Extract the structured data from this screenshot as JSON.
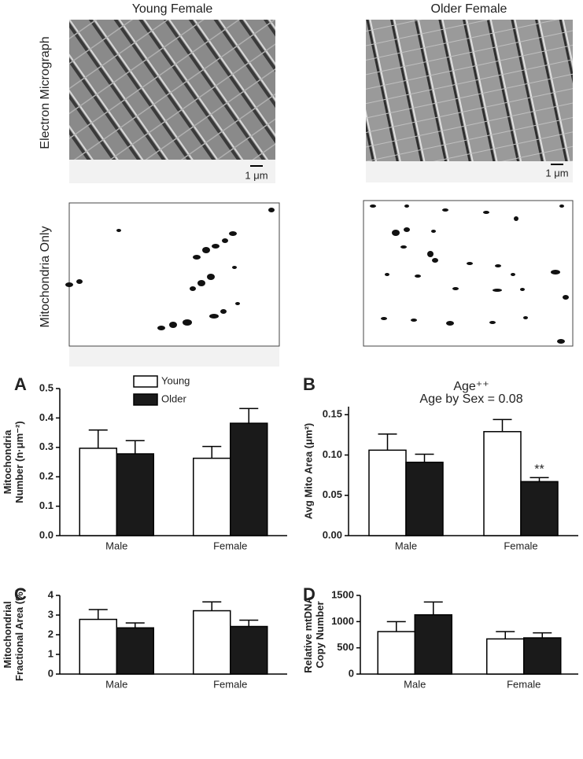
{
  "figure": {
    "columns": [
      "Young Female",
      "Older Female"
    ],
    "rows": [
      "Electron Micrograph",
      "Mitochondria Only"
    ],
    "scale_bar": "1 μm"
  },
  "chart_data": [
    {
      "type": "bar",
      "panel": "A",
      "ylabel": [
        "Mitochondria",
        "Number (n·μm⁻²)"
      ],
      "categories": [
        "Male",
        "Female"
      ],
      "series": [
        {
          "name": "Young",
          "color": "#ffffff",
          "values": [
            0.297,
            0.263
          ],
          "errors": [
            0.062,
            0.04
          ]
        },
        {
          "name": "Older",
          "color": "#1a1a1a",
          "values": [
            0.278,
            0.382
          ],
          "errors": [
            0.045,
            0.05
          ]
        }
      ],
      "ylim": [
        0,
        0.5
      ],
      "yticks": [
        {
          "value": 0,
          "label": "0.0"
        },
        0.1,
        0.2,
        0.3,
        0.4,
        0.5
      ],
      "legend": true
    },
    {
      "type": "bar",
      "panel": "B",
      "title": "Age⁺⁺",
      "subtitle": "Age by Sex = 0.08",
      "ylabel": [
        "Avg Mito Area (μm²)"
      ],
      "categories": [
        "Male",
        "Female"
      ],
      "series": [
        {
          "name": "Young",
          "color": "#ffffff",
          "values": [
            0.106,
            0.129
          ],
          "errors": [
            0.02,
            0.015
          ]
        },
        {
          "name": "Older",
          "color": "#1a1a1a",
          "values": [
            0.091,
            0.067
          ],
          "errors": [
            0.01,
            0.005
          ]
        }
      ],
      "ylim": [
        0,
        0.16
      ],
      "yticks": [
        {
          "value": 0,
          "label": "0.00"
        },
        {
          "value": 0.05,
          "label": "0.05"
        },
        {
          "value": 0.1,
          "label": "0.10"
        },
        {
          "value": 0.15,
          "label": "0.15"
        }
      ],
      "annotation": "**"
    },
    {
      "type": "bar",
      "panel": "C",
      "ylabel": [
        "Mitochondrial",
        "Fractional Area (%)"
      ],
      "categories": [
        "Male",
        "Female"
      ],
      "series": [
        {
          "name": "Young",
          "color": "#ffffff",
          "values": [
            2.78,
            3.22
          ],
          "errors": [
            0.5,
            0.45
          ]
        },
        {
          "name": "Older",
          "color": "#1a1a1a",
          "values": [
            2.35,
            2.42
          ],
          "errors": [
            0.25,
            0.32
          ]
        }
      ],
      "ylim": [
        0,
        4
      ],
      "yticks": [
        0,
        1,
        2,
        3,
        4
      ]
    },
    {
      "type": "bar",
      "panel": "D",
      "ylabel": [
        "Relative mtDNA",
        "Copy Number"
      ],
      "categories": [
        "Male",
        "Female"
      ],
      "series": [
        {
          "name": "Young",
          "color": "#ffffff",
          "values": [
            810,
            670
          ],
          "errors": [
            190,
            140
          ]
        },
        {
          "name": "Older",
          "color": "#1a1a1a",
          "values": [
            1130,
            690
          ],
          "errors": [
            245,
            95
          ]
        }
      ],
      "ylim": [
        0,
        1500
      ],
      "yticks": [
        0,
        500,
        1000,
        1500
      ]
    }
  ]
}
